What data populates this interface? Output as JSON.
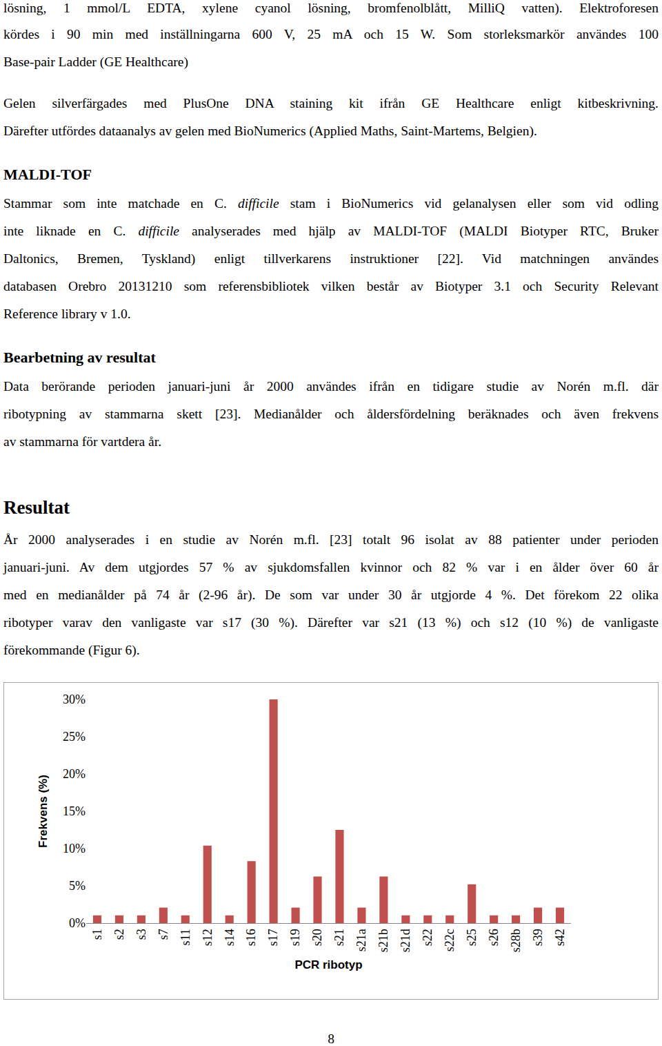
{
  "document": {
    "blocks": [
      {
        "type": "paragraph",
        "lines": [
          [
            {
              "text": "lösning, 1 mmol/L EDTA, xylene cyanol lösning, bromfenolblått, MilliQ vatten). Elektroforesen"
            }
          ],
          [
            {
              "text": "kördes i 90 min med inställningarna 600 V, 25 mA och 15 W. Som storleksmarkör användes 100"
            }
          ],
          [
            {
              "text": "Base-pair Ladder (GE Healthcare)"
            }
          ]
        ]
      },
      {
        "type": "paragraph",
        "lines": [
          [
            {
              "text": "Gelen silverfärgades med PlusOne DNA staining kit ifrån GE Healthcare enligt kitbeskrivning."
            }
          ],
          [
            {
              "text": "Därefter utfördes dataanalys av gelen med BioNumerics (Applied Maths, Saint-Martems, Belgien)."
            }
          ]
        ]
      },
      {
        "type": "heading",
        "text": "MALDI-TOF"
      },
      {
        "type": "paragraph",
        "lines": [
          [
            {
              "text": "Stammar som inte matchade en C. "
            },
            {
              "text": "difficile",
              "italic": true
            },
            {
              "text": " stam i BioNumerics vid gelanalysen eller som vid odling"
            }
          ],
          [
            {
              "text": "inte liknade en C. "
            },
            {
              "text": "difficile",
              "italic": true
            },
            {
              "text": " analyserades med hjälp av MALDI-TOF (MALDI Biotyper RTC, Bruker"
            }
          ],
          [
            {
              "text": "Daltonics, Bremen, Tyskland) enligt tillverkarens instruktioner [22]. Vid matchningen användes"
            }
          ],
          [
            {
              "text": "databasen Orebro 20131210 som referensbibliotek vilken består av Biotyper 3.1 och Security Relevant"
            }
          ],
          [
            {
              "text": "Reference library v 1.0."
            }
          ]
        ]
      },
      {
        "type": "heading",
        "text": "Bearbetning av resultat"
      },
      {
        "type": "paragraph",
        "lines": [
          [
            {
              "text": "Data berörande perioden januari-juni år 2000 användes ifrån en tidigare studie av Norén m.fl. där"
            }
          ],
          [
            {
              "text": "ribotypning av stammarna skett [23]. Medianålder och åldersfördelning beräknades och även frekvens"
            }
          ],
          [
            {
              "text": "av stammarna för vartdera år."
            }
          ]
        ]
      },
      {
        "type": "section",
        "text": "Resultat"
      },
      {
        "type": "paragraph",
        "lines": [
          [
            {
              "text": "År 2000 analyserades i en studie av Norén m.fl. [23] totalt 96 isolat av 88 patienter under perioden"
            }
          ],
          [
            {
              "text": "januari-juni. Av dem utgjordes 57 % av sjukdomsfallen kvinnor och 82 % var i en ålder över 60 år"
            }
          ],
          [
            {
              "text": "med en medianålder på 74 år (2-96 år). De som var under 30 år utgjorde 4 %. Det förekom 22 olika"
            }
          ],
          [
            {
              "text": "ribotyper varav den vanligaste var s17 (30 %). Därefter var s21 (13 %) och s12 (10 %) de vanligaste"
            }
          ],
          [
            {
              "text": "förekommande (Figur 6)."
            }
          ]
        ]
      }
    ],
    "page_number": "8"
  },
  "chart_data": {
    "type": "bar",
    "categories": [
      "s1",
      "s2",
      "s3",
      "s7",
      "s11",
      "s12",
      "s14",
      "s16",
      "s17",
      "s19",
      "s20",
      "s21",
      "s21a",
      "s21b",
      "s21d",
      "s22",
      "s22c",
      "s25",
      "s26",
      "s28b",
      "s39",
      "s42"
    ],
    "values": [
      1.04,
      1.04,
      1.04,
      2.08,
      1.04,
      10.4,
      1.04,
      8.3,
      30,
      2.08,
      6.25,
      12.5,
      2.08,
      6.25,
      1.04,
      1.04,
      1.04,
      5.2,
      1.04,
      1.04,
      2.08,
      2.08
    ],
    "color": "#c0504d",
    "xlabel": "PCR ribotyp",
    "ylabel": "Frekvens (%)",
    "ylim": [
      0,
      30
    ],
    "yticks": [
      {
        "value": 0,
        "label": "0%"
      },
      {
        "value": 5,
        "label": "5%"
      },
      {
        "value": 10,
        "label": "10%"
      },
      {
        "value": 15,
        "label": "15%"
      },
      {
        "value": 20,
        "label": "20%"
      },
      {
        "value": 25,
        "label": "25%"
      },
      {
        "value": 30,
        "label": "30%"
      }
    ],
    "grid": false
  }
}
